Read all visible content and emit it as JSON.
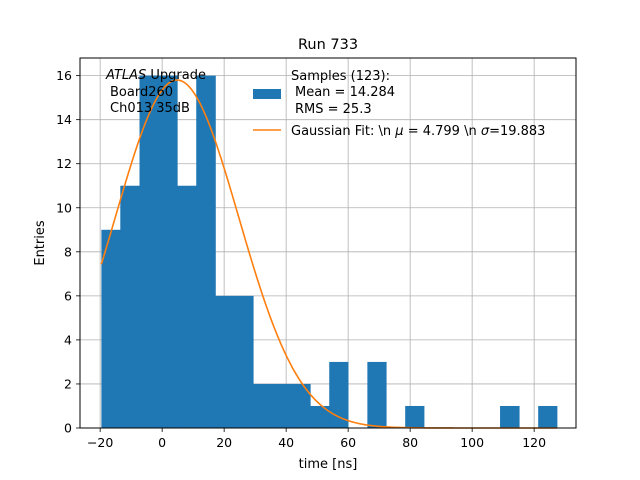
{
  "chart_data": {
    "type": "bar",
    "title": "Run 733",
    "xlabel": "time [ns]",
    "ylabel": "Entries",
    "xlim": [
      -26.5,
      133.5
    ],
    "ylim": [
      0,
      16.8
    ],
    "xticks": [
      -20,
      0,
      20,
      40,
      60,
      80,
      100,
      120
    ],
    "yticks": [
      0,
      2,
      4,
      6,
      8,
      10,
      12,
      14,
      16
    ],
    "grid": true,
    "bin_edges": [
      -19.6,
      -13.5,
      -7.3,
      -1.2,
      4.9,
      11.0,
      17.2,
      23.3,
      29.4,
      35.5,
      41.7,
      47.8,
      53.9,
      60.0,
      66.2,
      72.3,
      78.4,
      84.5,
      90.7,
      96.8,
      102.9,
      109.0,
      115.2,
      121.3,
      127.4
    ],
    "counts": [
      9,
      11,
      16,
      16,
      11,
      16,
      6,
      6,
      2,
      2,
      2,
      1,
      3,
      0,
      3,
      0,
      1,
      0,
      0,
      0,
      0,
      1,
      0,
      1
    ],
    "fit": {
      "mu": 4.799,
      "sigma": 19.883,
      "amplitude": 15.8
    },
    "hist_color": "#1f77b4",
    "fit_color": "#ff7f0e",
    "legend_position": "upper right",
    "annotation": {
      "italic": "ATLAS",
      "rest": " Upgrade",
      "line2": "Board260",
      "line3": "Ch013 35dB"
    },
    "legend": {
      "hist_label_line1": "Samples (123):",
      "hist_label_line2": "Mean = 14.284",
      "hist_label_line3": "RMS = 25.3",
      "fit_label_prefix": "Gaussian Fit: \\n ",
      "fit_mu_symbol": "μ",
      "fit_mu_text": " = 4.799 \\n ",
      "fit_sigma_symbol": "σ",
      "fit_sigma_text": "=19.883"
    }
  }
}
